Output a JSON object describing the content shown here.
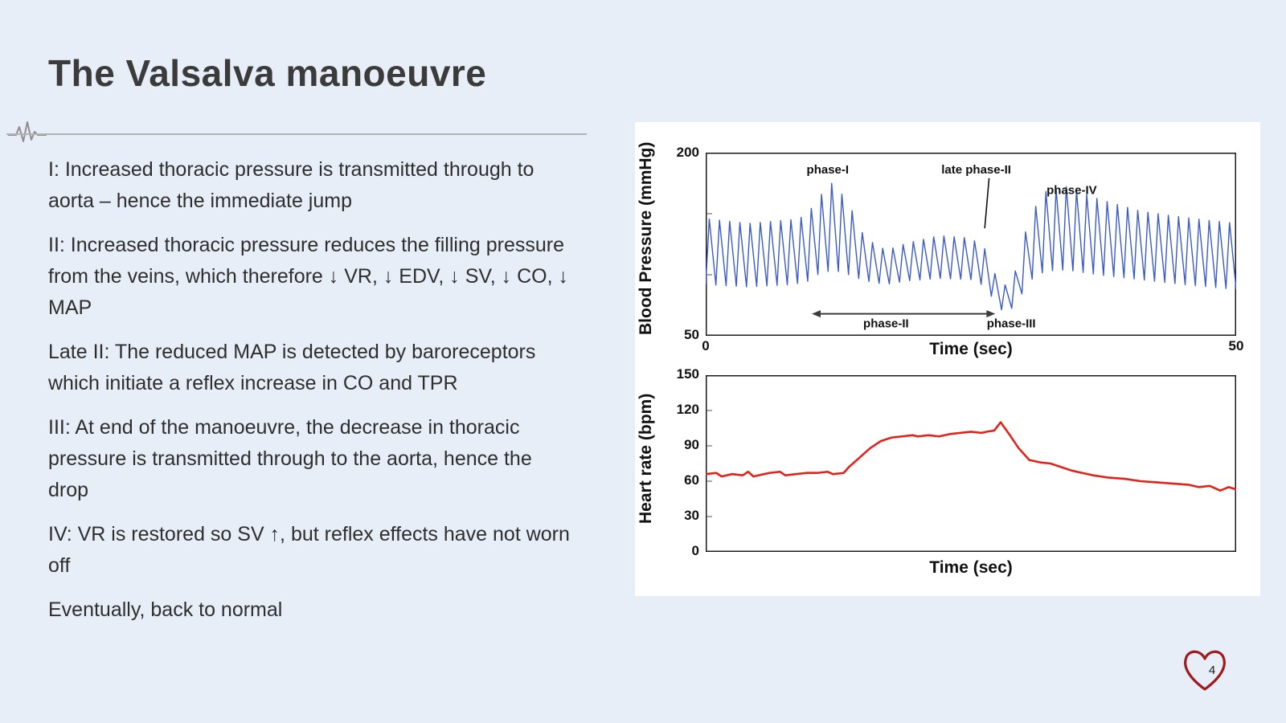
{
  "slide": {
    "title": "The Valsalva manoeuvre",
    "page_number": "4",
    "heart_color": "#9e1b1e",
    "paragraphs": [
      "I: Increased thoracic pressure is transmitted through to aorta – hence the immediate jump",
      "II: Increased thoracic pressure reduces the filling pressure from the veins, which therefore ↓ VR, ↓ EDV, ↓ SV, ↓ CO, ↓ MAP",
      "Late II: The reduced MAP is detected by baroreceptors which initiate a reflex increase in CO and TPR",
      "III: At end of the manoeuvre, the decrease in thoracic pressure is transmitted through to the aorta, hence the drop",
      "IV: VR is restored so SV ↑, but reflex effects have not worn off",
      "Eventually, back to normal"
    ]
  },
  "chart_data": [
    {
      "type": "line",
      "name": "blood-pressure",
      "ylabel": "Blood Pressure (mmHg)",
      "xlabel": "Time (sec)",
      "xlim": [
        0,
        50
      ],
      "ylim": [
        50,
        200
      ],
      "x_tick_labels": [
        "0",
        "50"
      ],
      "y_tick_labels": [
        "200",
        "50"
      ],
      "minor_y_ticks": [
        100,
        150
      ],
      "line_color": "#3a5bc7",
      "cycles": 52,
      "upstroke": 0.35,
      "envelope": [
        {
          "t": 0,
          "low": 92,
          "high": 146
        },
        {
          "t": 4,
          "low": 90,
          "high": 142
        },
        {
          "t": 8,
          "low": 92,
          "high": 145
        },
        {
          "t": 9.5,
          "low": 94,
          "high": 148
        },
        {
          "t": 10.5,
          "low": 100,
          "high": 162
        },
        {
          "t": 12,
          "low": 104,
          "high": 176
        },
        {
          "t": 13.5,
          "low": 100,
          "high": 158
        },
        {
          "t": 15,
          "low": 95,
          "high": 130
        },
        {
          "t": 17,
          "low": 92,
          "high": 120
        },
        {
          "t": 19,
          "low": 95,
          "high": 126
        },
        {
          "t": 22,
          "low": 97,
          "high": 132
        },
        {
          "t": 25,
          "low": 96,
          "high": 130
        },
        {
          "t": 26.5,
          "low": 90,
          "high": 120
        },
        {
          "t": 27.5,
          "low": 72,
          "high": 95
        },
        {
          "t": 28.6,
          "low": 70,
          "high": 90
        },
        {
          "t": 29.4,
          "low": 78,
          "high": 108
        },
        {
          "t": 30.5,
          "low": 95,
          "high": 148
        },
        {
          "t": 32,
          "low": 103,
          "high": 168
        },
        {
          "t": 34,
          "low": 104,
          "high": 172
        },
        {
          "t": 37,
          "low": 100,
          "high": 162
        },
        {
          "t": 41,
          "low": 96,
          "high": 152
        },
        {
          "t": 45,
          "low": 92,
          "high": 147
        },
        {
          "t": 50,
          "low": 88,
          "high": 142
        }
      ],
      "annotations": [
        {
          "label": "phase-I",
          "t": 11.5,
          "v": 183
        },
        {
          "label": "late phase-II",
          "t": 25.5,
          "v": 183,
          "pointer_to": {
            "t": 26.3,
            "v": 138
          }
        },
        {
          "label": "phase-IV",
          "t": 34.5,
          "v": 166
        },
        {
          "label": "phase-II",
          "t": 17,
          "v": 57
        },
        {
          "label": "phase-III",
          "t": 28.8,
          "v": 57
        }
      ],
      "span_arrow": {
        "t1": 10,
        "t2": 27.3,
        "v": 68
      }
    },
    {
      "type": "line",
      "name": "heart-rate",
      "ylabel": "Heart rate (bpm)",
      "xlabel": "Time (sec)",
      "xlim": [
        0,
        50
      ],
      "ylim": [
        0,
        150
      ],
      "y_ticks": [
        150,
        120,
        90,
        60,
        30,
        0
      ],
      "y_tick_labels": [
        "150",
        "120",
        "90",
        "60",
        "30",
        "0"
      ],
      "line_color": "#e32119",
      "points": [
        [
          0,
          66
        ],
        [
          1,
          67
        ],
        [
          1.5,
          64
        ],
        [
          2.5,
          66
        ],
        [
          3.5,
          65
        ],
        [
          4,
          68
        ],
        [
          4.5,
          64
        ],
        [
          5.5,
          66
        ],
        [
          6,
          67
        ],
        [
          7,
          68
        ],
        [
          7.5,
          65
        ],
        [
          8.5,
          66
        ],
        [
          9.5,
          67
        ],
        [
          10.5,
          67
        ],
        [
          11.5,
          68
        ],
        [
          12,
          66
        ],
        [
          13,
          67
        ],
        [
          13.5,
          72
        ],
        [
          14.5,
          80
        ],
        [
          15.5,
          88
        ],
        [
          16.5,
          94
        ],
        [
          17.5,
          97
        ],
        [
          18.5,
          98
        ],
        [
          19.5,
          99
        ],
        [
          20,
          98
        ],
        [
          21,
          99
        ],
        [
          22,
          98
        ],
        [
          23,
          100
        ],
        [
          24,
          101
        ],
        [
          25,
          102
        ],
        [
          26,
          101
        ],
        [
          26.5,
          102
        ],
        [
          27.2,
          103
        ],
        [
          27.8,
          110
        ],
        [
          28.6,
          100
        ],
        [
          29.5,
          88
        ],
        [
          30.5,
          78
        ],
        [
          31.5,
          76
        ],
        [
          32.5,
          75
        ],
        [
          33.5,
          72
        ],
        [
          34.5,
          69
        ],
        [
          35.5,
          67
        ],
        [
          36.5,
          65
        ],
        [
          38,
          63
        ],
        [
          39.5,
          62
        ],
        [
          41,
          60
        ],
        [
          42.5,
          59
        ],
        [
          44,
          58
        ],
        [
          45.5,
          57
        ],
        [
          46.5,
          55
        ],
        [
          47.5,
          56
        ],
        [
          48.5,
          52
        ],
        [
          49.3,
          55
        ],
        [
          50,
          53
        ]
      ]
    }
  ]
}
